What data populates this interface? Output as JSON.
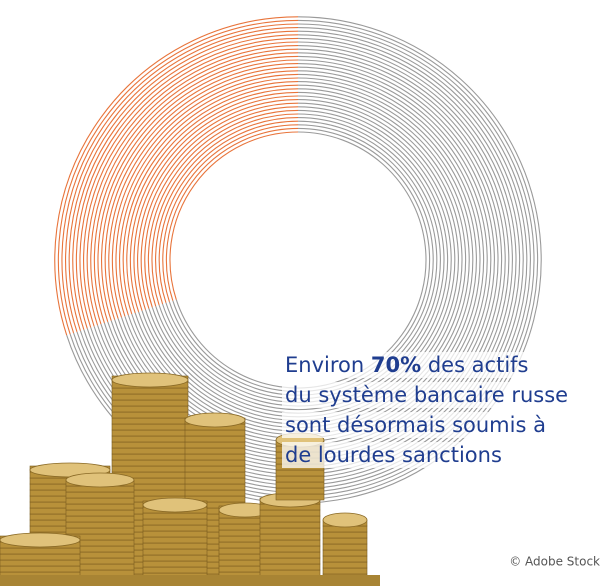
{
  "chart_data": {
    "type": "donut",
    "values": [
      70,
      30
    ],
    "value_labels": [
      "70%",
      null
    ],
    "colors": [
      "#9a9a9a",
      "#e8743b"
    ],
    "annotation": {
      "before": "Environ",
      "after": "des actifs",
      "lines": [
        "du système bancaire russe",
        "sont désormais soumis à",
        "de lourdes sanctions"
      ]
    },
    "credit": "© Adobe Stock"
  }
}
